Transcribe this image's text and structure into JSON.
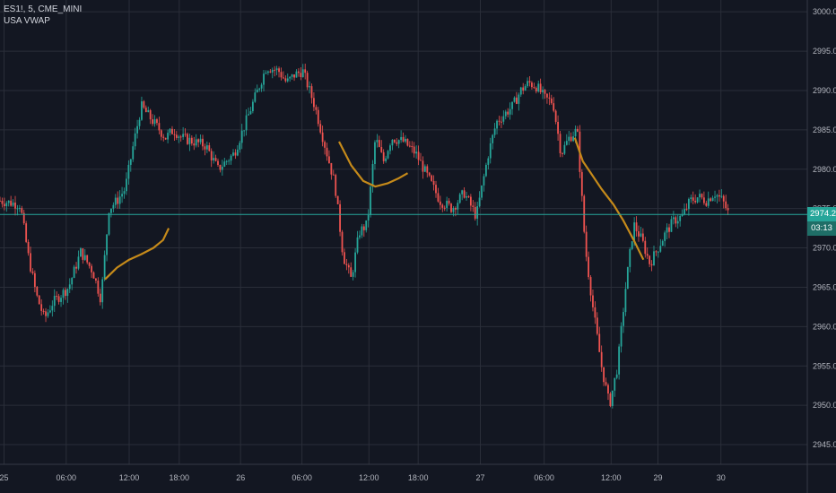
{
  "legend": {
    "symbol_line": "ES1!, 5, CME_MINI",
    "indicator": "USA VWAP"
  },
  "price_badge": {
    "price": "2974.25",
    "countdown": "03:13"
  },
  "colors": {
    "background": "#131722",
    "grid": "#2a2e39",
    "up": "#26a69a",
    "down": "#ef5350",
    "vwap": "#c58a1a",
    "price_line": "#26a69a",
    "text": "#b2b5be"
  },
  "chart_data": {
    "type": "line",
    "ylim": [
      2942.5,
      3001.5
    ],
    "xlim": [
      0,
      100
    ],
    "y_ticks": [
      "2945.00",
      "2950.00",
      "2955.00",
      "2960.00",
      "2965.00",
      "2970.00",
      "2975.00",
      "2980.00",
      "2985.00",
      "2990.00",
      "2995.00",
      "3000.00"
    ],
    "x_ticks": [
      {
        "x": 0.5,
        "label": "25"
      },
      {
        "x": 8.2,
        "label": "06:00"
      },
      {
        "x": 16.0,
        "label": "12:00"
      },
      {
        "x": 22.2,
        "label": "18:00"
      },
      {
        "x": 29.8,
        "label": "26"
      },
      {
        "x": 37.4,
        "label": "06:00"
      },
      {
        "x": 45.7,
        "label": "12:00"
      },
      {
        "x": 51.8,
        "label": "18:00"
      },
      {
        "x": 59.5,
        "label": "27"
      },
      {
        "x": 67.4,
        "label": "06:00"
      },
      {
        "x": 75.7,
        "label": "12:00"
      },
      {
        "x": 81.5,
        "label": "29"
      },
      {
        "x": 89.3,
        "label": "30"
      }
    ],
    "series": [
      {
        "x": [
          0,
          2.5,
          3.5,
          4.5,
          5.5,
          6.5,
          7.5,
          8.5,
          10,
          11.5,
          12.5,
          13.5,
          14.5,
          15.5,
          16.5,
          17.5,
          19,
          20.5,
          21.5,
          22.5,
          24,
          25.5,
          27,
          29,
          31,
          33,
          34.5,
          35.5,
          36.5,
          37.5,
          39,
          40.5,
          41.5,
          42.5,
          43.5,
          44.5,
          45.5,
          46.5,
          47.5,
          48.5,
          50,
          51.5,
          53,
          54.5,
          56,
          57.5,
          59,
          60.5,
          61.5,
          62.5,
          63.5,
          64.5,
          65.5,
          66.5,
          67.5,
          68.5,
          69.5,
          70.5,
          71.5,
          72.5,
          73.5,
          74.5,
          75.5,
          76.5,
          77.5,
          78.5,
          79.5,
          80.5,
          81.5,
          82.5,
          83.5,
          84.5,
          85.5,
          86.5,
          87.5,
          88.5,
          89.5,
          90.3
        ],
        "values": [
          2976,
          2975.5,
          2969,
          2964,
          2961,
          2963,
          2964,
          2965,
          2969.5,
          2967,
          2963.5,
          2975,
          2976,
          2977.5,
          2983,
          2988,
          2986,
          2984,
          2985,
          2984,
          2983.5,
          2983,
          2980,
          2982,
          2987.5,
          2993,
          2992.5,
          2991,
          2992,
          2992.5,
          2988,
          2982,
          2978,
          2969,
          2966,
          2972,
          2973,
          2984,
          2981,
          2984,
          2983.5,
          2982,
          2979,
          2976,
          2975,
          2977,
          2974,
          2982,
          2986,
          2987,
          2988,
          2990,
          2991,
          2990.5,
          2989,
          2988.5,
          2982,
          2984,
          2985,
          2970,
          2962,
          2955,
          2950,
          2955,
          2965,
          2973,
          2971,
          2968,
          2970,
          2972,
          2973.5,
          2974,
          2976,
          2976.5,
          2976,
          2977,
          2976,
          2974.25
        ],
        "role": "price"
      },
      {
        "x": [
          13,
          14.5,
          16,
          17.5,
          19,
          20.2,
          20.9,
          42,
          43.5,
          45,
          46.5,
          48,
          49.3,
          50.5,
          71.2,
          72.2,
          73.2,
          74.5,
          76,
          77.2,
          78.5,
          79.7
        ],
        "values": [
          2966,
          2967.5,
          2968.5,
          2969.2,
          2970,
          2971,
          2972.5,
          2983.5,
          2980.5,
          2978.5,
          2977.8,
          2978.2,
          2978.8,
          2979.5,
          2984,
          2981,
          2979.5,
          2977.5,
          2975.5,
          2973.5,
          2971,
          2968.5
        ],
        "breaks_after": [
          6,
          13
        ],
        "role": "vwap"
      }
    ],
    "last_price": 2974.25
  }
}
